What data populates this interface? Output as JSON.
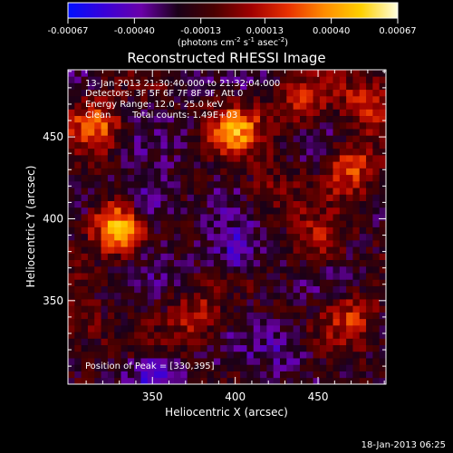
{
  "chart_data": {
    "type": "heatmap",
    "title": "Reconstructed RHESSI Image",
    "xlabel": "Heliocentric X (arcsec)",
    "ylabel": "Heliocentric Y (arcsec)",
    "xlim": [
      299,
      491
    ],
    "ylim": [
      299,
      491
    ],
    "x_ticks": [
      350,
      400,
      450
    ],
    "y_ticks": [
      350,
      400,
      450
    ],
    "colorbar": {
      "ticks": [
        -0.00067,
        -0.0004,
        -0.00013,
        0.00013,
        0.0004,
        0.00067
      ],
      "tick_labels": [
        "-0.00067",
        "-0.00040",
        "-0.00013",
        "0.00013",
        "0.00040",
        "0.00067"
      ],
      "range": [
        -0.00067,
        0.00067
      ],
      "unit_label": "(photons cm",
      "unit_exp1": "-2",
      "unit_mid": " s",
      "unit_exp2": "-1",
      "unit_tail": " asec",
      "unit_exp3": "-2",
      "unit_close": ")",
      "colormap": [
        "#0010ff",
        "#3a00d8",
        "#6a00a8",
        "#1a0018",
        "#4a0000",
        "#a00000",
        "#e83000",
        "#ff8c00",
        "#ffd000",
        "#ffffe0"
      ]
    },
    "annotations": [
      "13-Jan-2013 21:30:40.000 to 21:32:04.000",
      "Detectors: 3F 5F 6F 7F 8F 9F, Att 0",
      "Energy Range: 12.0 - 25.0 keV",
      "Clean",
      "Total counts: 1.49E+03"
    ],
    "peak_label": "Position of Peak = [330,395]",
    "peak": [
      330,
      395
    ],
    "sources": [
      {
        "x": 330,
        "y": 395,
        "flux": 0.00067
      },
      {
        "x": 400,
        "y": 455,
        "flux": 0.00052
      },
      {
        "x": 316,
        "y": 457,
        "flux": 0.00045
      },
      {
        "x": 470,
        "y": 432,
        "flux": 0.0004
      },
      {
        "x": 480,
        "y": 470,
        "flux": 0.00038
      },
      {
        "x": 378,
        "y": 340,
        "flux": 0.0003
      },
      {
        "x": 470,
        "y": 340,
        "flux": 0.0003
      },
      {
        "x": 450,
        "y": 385,
        "flux": 0.00026
      },
      {
        "x": 440,
        "y": 470,
        "flux": 0.00028
      },
      {
        "x": 305,
        "y": 335,
        "flux": 0.00022
      },
      {
        "x": 420,
        "y": 415,
        "flux": 0.0002
      }
    ],
    "negative_regions": [
      {
        "x": 345,
        "y": 410,
        "flux": -0.00035
      },
      {
        "x": 400,
        "y": 380,
        "flux": -0.0003
      },
      {
        "x": 350,
        "y": 305,
        "flux": -0.00025
      },
      {
        "x": 430,
        "y": 320,
        "flux": -0.0002
      }
    ]
  },
  "footer_date": "18-Jan-2013 06:25"
}
